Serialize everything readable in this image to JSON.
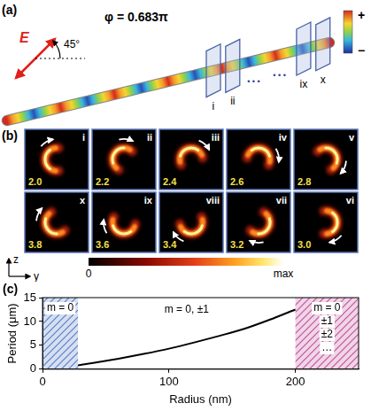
{
  "figure": {
    "panel_a": {
      "letter": "(a)",
      "field": "E",
      "angle": "45°",
      "phase": "φ = 0.683π",
      "planes": [
        "i",
        "ii",
        "ix",
        "x"
      ],
      "ellipses": [
        "• • •",
        "• • •"
      ],
      "colorbar_labels": [
        "+",
        "−"
      ]
    },
    "panel_b": {
      "letter": "(b)",
      "frames": [
        {
          "label": "i",
          "value": "2.0"
        },
        {
          "label": "ii",
          "value": "2.2"
        },
        {
          "label": "iii",
          "value": "2.4"
        },
        {
          "label": "iv",
          "value": "2.6"
        },
        {
          "label": "v",
          "value": "2.8"
        },
        {
          "label": "vi",
          "value": "3.0"
        },
        {
          "label": "vii",
          "value": "3.2"
        },
        {
          "label": "viii",
          "value": "3.4"
        },
        {
          "label": "ix",
          "value": "3.6"
        },
        {
          "label": "x",
          "value": "3.8"
        }
      ],
      "colorbar_labels": [
        "0",
        "max"
      ],
      "axes": [
        "z",
        "y"
      ]
    },
    "panel_c": {
      "letter": "(c)"
    }
  },
  "chart_data": {
    "type": "line",
    "x_label": "Radius (nm)",
    "y_label": "Period (μm)",
    "x": [
      28,
      40,
      60,
      80,
      100,
      120,
      140,
      160,
      180,
      200
    ],
    "values": [
      0.8,
      1.3,
      2.2,
      3.2,
      4.3,
      5.6,
      7.0,
      8.5,
      10.4,
      12.5
    ],
    "color": "#000000",
    "line_style": "solid",
    "marker": "none",
    "xlim": [
      0,
      250
    ],
    "ylim": [
      0,
      15
    ],
    "xticks": [
      0,
      100,
      200
    ],
    "yticks": [
      0,
      5,
      10,
      15
    ],
    "grid": false,
    "regions": [
      {
        "xlim": [
          0,
          28
        ],
        "color": "#5b7fc7",
        "labels": [
          "m = 0"
        ]
      },
      {
        "xlim": [
          200,
          250
        ],
        "color": "#c2569e",
        "labels": [
          "m = 0",
          "±1",
          "±2",
          "…"
        ]
      }
    ],
    "annotations": [
      "m = 0, ±1"
    ]
  }
}
